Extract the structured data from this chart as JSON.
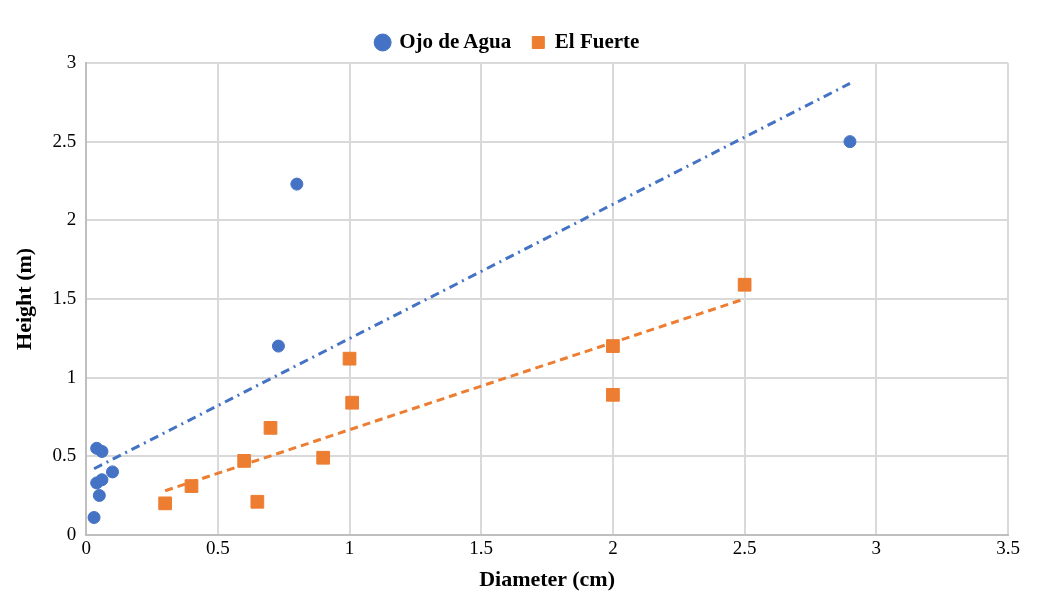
{
  "chart_data": {
    "type": "scatter",
    "xlabel": "Diameter (cm)",
    "ylabel": "Height (m)",
    "xlim": [
      0,
      3.5
    ],
    "xticks": [
      0,
      0.5,
      1,
      1.5,
      2,
      2.5,
      3,
      3.5
    ],
    "ylim": [
      0,
      3
    ],
    "yticks": [
      0,
      0.5,
      1,
      1.5,
      2,
      2.5,
      3
    ],
    "grid": true,
    "legend": "top",
    "series": [
      {
        "name": "Ojo de Agua",
        "color": "#4472c4",
        "marker": "circle",
        "x": [
          0.03,
          0.04,
          0.06,
          0.04,
          0.06,
          0.05,
          0.1,
          0.73,
          0.8,
          2.9
        ],
        "values": [
          0.11,
          0.55,
          0.53,
          0.33,
          0.35,
          0.25,
          0.4,
          1.2,
          2.23,
          2.5
        ]
      },
      {
        "name": "El Fuerte",
        "color": "#ed7d31",
        "marker": "square",
        "x": [
          0.3,
          0.4,
          0.6,
          0.65,
          0.7,
          0.9,
          1.0,
          1.01,
          2.0,
          2.0,
          2.5
        ],
        "values": [
          0.2,
          0.31,
          0.47,
          0.21,
          0.68,
          0.49,
          1.12,
          0.84,
          1.2,
          0.89,
          1.59
        ]
      },
      {
        "type": "line",
        "color": "#4472c4",
        "line_style": "dashdot",
        "marker": "none",
        "x": [
          0.03,
          2.9
        ],
        "values": [
          0.42,
          2.87
        ]
      },
      {
        "type": "line",
        "color": "#ed7d31",
        "line_style": "dashed",
        "marker": "none",
        "x": [
          0.3,
          2.5
        ],
        "values": [
          0.28,
          1.5
        ]
      }
    ]
  }
}
